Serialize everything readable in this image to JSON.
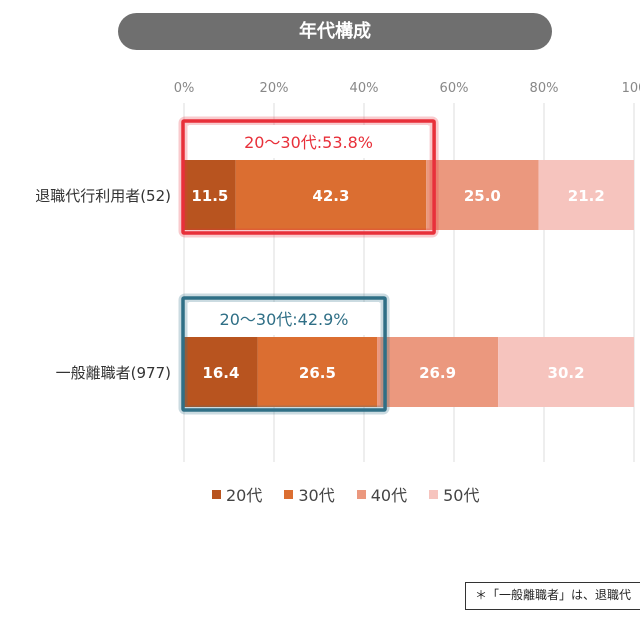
{
  "header": {
    "title": "年代構成"
  },
  "footnote": "＊「一般離職者」は、退職代",
  "chart_data": {
    "type": "bar",
    "orientation": "horizontal",
    "stacked": true,
    "percent_stacked": true,
    "categories": [
      "退職代行利用者(52)",
      "一般離職者(977)"
    ],
    "series": [
      {
        "name": "20代",
        "values": [
          11.5,
          16.4
        ],
        "color": "#b8541f"
      },
      {
        "name": "30代",
        "values": [
          42.3,
          26.5
        ],
        "color": "#db6e31"
      },
      {
        "name": "40代",
        "values": [
          25.0,
          26.9
        ],
        "color": "#eb987e"
      },
      {
        "name": "50代",
        "values": [
          21.2,
          30.2
        ],
        "color": "#f6c4be"
      }
    ],
    "x_ticks": [
      "0%",
      "20%",
      "40%",
      "60%",
      "80%",
      "100"
    ],
    "xlim": [
      0,
      100
    ],
    "grid": true,
    "legend_position": "bottom",
    "annotations": [
      {
        "text": "20〜30代:53.8%",
        "category": "退職代行利用者(52)",
        "color": "#e8303a",
        "span_end": 53.8
      },
      {
        "text": "20〜30代:42.9%",
        "category": "一般離職者(977)",
        "color": "#2f6f86",
        "span_end": 42.9
      }
    ]
  }
}
